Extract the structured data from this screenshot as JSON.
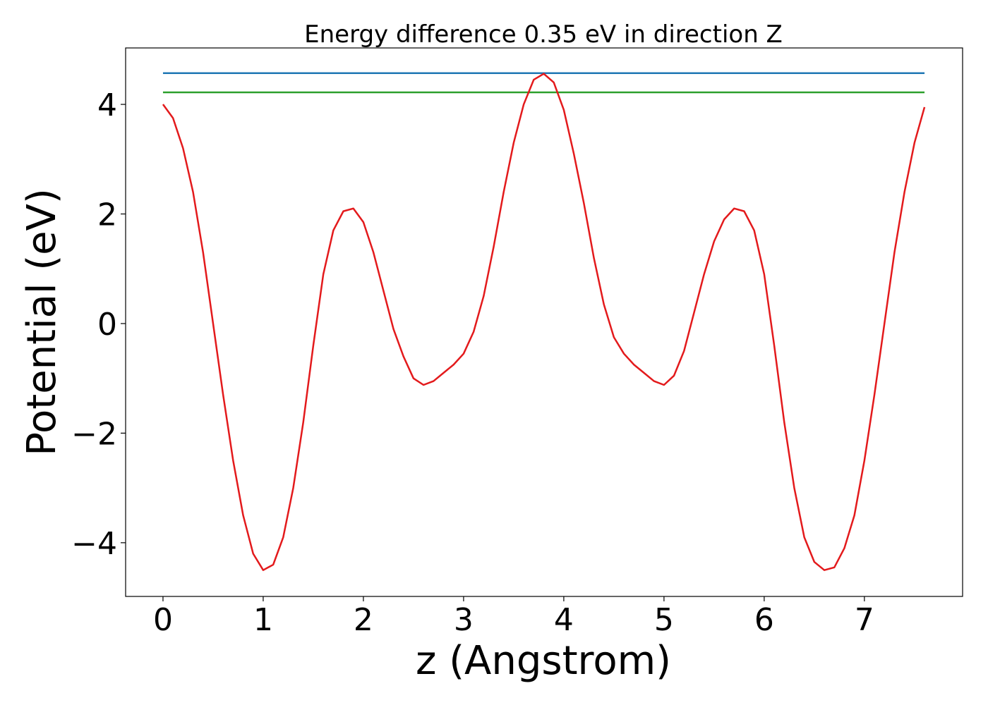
{
  "chart_data": {
    "type": "line",
    "title": "Energy difference 0.35 eV in direction Z",
    "xlabel": "z (Angstrom)",
    "ylabel": "Potential (eV)",
    "xlim": [
      -0.373,
      7.98
    ],
    "ylim": [
      -4.98,
      5.03
    ],
    "xticks": [
      0,
      1,
      2,
      3,
      4,
      5,
      6,
      7
    ],
    "yticks": [
      {
        "value": -4,
        "label": "−4"
      },
      {
        "value": -2,
        "label": "−2"
      },
      0,
      2,
      4
    ],
    "series": [
      {
        "color": "#1f77b4",
        "x": [
          0,
          7.6
        ],
        "values": [
          4.57,
          4.57
        ]
      },
      {
        "color": "#2ca02c",
        "x": [
          0,
          7.6
        ],
        "values": [
          4.22,
          4.22
        ]
      },
      {
        "color": "#e31a1c",
        "x": [
          0,
          0.1,
          0.2,
          0.3,
          0.4,
          0.5,
          0.6,
          0.7,
          0.8,
          0.9,
          1.0,
          1.1,
          1.2,
          1.3,
          1.4,
          1.5,
          1.6,
          1.7,
          1.8,
          1.9,
          2.0,
          2.1,
          2.2,
          2.3,
          2.4,
          2.5,
          2.6,
          2.7,
          2.8,
          2.9,
          3.0,
          3.1,
          3.2,
          3.3,
          3.4,
          3.5,
          3.6,
          3.7,
          3.8,
          3.9,
          4.0,
          4.1,
          4.2,
          4.3,
          4.4,
          4.5,
          4.6,
          4.7,
          4.8,
          4.9,
          5.0,
          5.1,
          5.2,
          5.3,
          5.4,
          5.5,
          5.6,
          5.7,
          5.8,
          5.9,
          6.0,
          6.1,
          6.2,
          6.3,
          6.4,
          6.5,
          6.6,
          6.7,
          6.8,
          6.9,
          7.0,
          7.1,
          7.2,
          7.3,
          7.4,
          7.5,
          7.6
        ],
        "values": [
          4.0,
          3.75,
          3.2,
          2.4,
          1.3,
          0.0,
          -1.3,
          -2.5,
          -3.5,
          -4.2,
          -4.5,
          -4.4,
          -3.9,
          -3.0,
          -1.8,
          -0.4,
          0.9,
          1.7,
          2.05,
          2.1,
          1.85,
          1.3,
          0.6,
          -0.1,
          -0.6,
          -1.0,
          -1.12,
          -1.05,
          -0.9,
          -0.75,
          -0.55,
          -0.15,
          0.5,
          1.4,
          2.4,
          3.3,
          4.0,
          4.45,
          4.56,
          4.4,
          3.9,
          3.1,
          2.2,
          1.2,
          0.35,
          -0.25,
          -0.55,
          -0.75,
          -0.9,
          -1.05,
          -1.12,
          -0.95,
          -0.5,
          0.2,
          0.9,
          1.5,
          1.9,
          2.1,
          2.05,
          1.7,
          0.9,
          -0.4,
          -1.8,
          -3.0,
          -3.9,
          -4.35,
          -4.5,
          -4.45,
          -4.1,
          -3.5,
          -2.5,
          -1.3,
          0.0,
          1.3,
          2.4,
          3.3,
          3.95
        ]
      }
    ]
  }
}
